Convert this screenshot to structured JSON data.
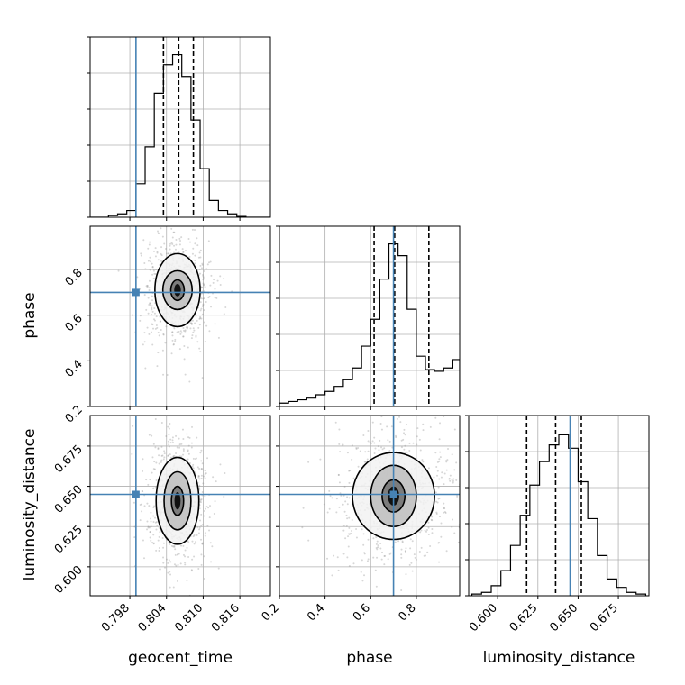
{
  "figure": {
    "type": "corner-plot",
    "truth_color": "#4682b4",
    "hist_color": "#000000",
    "scatter_color": "#8c8c8c"
  },
  "chart_data": {
    "type": "corner",
    "parameters": [
      "geocent_time",
      "phase",
      "luminosity_distance"
    ],
    "truths": {
      "geocent_time": 0.799,
      "phase": 0.7,
      "luminosity_distance": 0.645
    },
    "ranges": {
      "geocent_time": [
        0.7915,
        0.821
      ],
      "phase": [
        0.2,
        0.99
      ],
      "luminosity_distance": [
        0.582,
        0.694
      ]
    },
    "ticks": {
      "geocent_time": [
        0.798,
        0.804,
        0.81,
        0.816
      ],
      "phase": [
        0.2,
        0.4,
        0.6,
        0.8
      ],
      "luminosity_distance": [
        0.6,
        0.625,
        0.65,
        0.675
      ]
    },
    "tick_labels": {
      "geocent_time": [
        "0.798",
        "0.804",
        "0.810",
        "0.816"
      ],
      "phase": [
        "0.2",
        "0.4",
        "0.6",
        "0.8"
      ],
      "luminosity_distance": [
        "0.600",
        "0.625",
        "0.650",
        "0.675"
      ]
    },
    "quantiles": {
      "geocent_time": [
        0.8035,
        0.806,
        0.8084
      ],
      "phase": [
        0.615,
        0.705,
        0.855
      ],
      "luminosity_distance": [
        0.618,
        0.636,
        0.652
      ]
    },
    "histograms": {
      "geocent_time": {
        "edges": [
          0.7915,
          0.793,
          0.7945,
          0.796,
          0.7975,
          0.799,
          0.8005,
          0.802,
          0.8035,
          0.805,
          0.8065,
          0.808,
          0.8095,
          0.811,
          0.8125,
          0.814,
          0.8155,
          0.817,
          0.8185,
          0.82,
          0.821
        ],
        "counts": [
          0,
          0,
          0.01,
          0.02,
          0.04,
          0.2,
          0.42,
          0.74,
          0.91,
          0.97,
          0.84,
          0.58,
          0.29,
          0.1,
          0.04,
          0.02,
          0.005,
          0,
          0,
          0
        ]
      },
      "phase": {
        "edges": [
          0.2,
          0.24,
          0.28,
          0.32,
          0.36,
          0.4,
          0.44,
          0.48,
          0.52,
          0.56,
          0.6,
          0.64,
          0.68,
          0.72,
          0.76,
          0.8,
          0.84,
          0.88,
          0.92,
          0.96,
          0.99
        ],
        "counts": [
          0.02,
          0.03,
          0.04,
          0.05,
          0.07,
          0.09,
          0.12,
          0.16,
          0.23,
          0.36,
          0.52,
          0.76,
          0.97,
          0.9,
          0.58,
          0.3,
          0.22,
          0.21,
          0.23,
          0.28
        ]
      },
      "luminosity_distance": {
        "edges": [
          0.584,
          0.59,
          0.596,
          0.602,
          0.608,
          0.614,
          0.62,
          0.626,
          0.632,
          0.638,
          0.644,
          0.65,
          0.656,
          0.662,
          0.668,
          0.674,
          0.68,
          0.686,
          0.692
        ],
        "counts": [
          0.01,
          0.02,
          0.06,
          0.15,
          0.3,
          0.48,
          0.66,
          0.8,
          0.9,
          0.96,
          0.88,
          0.68,
          0.46,
          0.24,
          0.1,
          0.05,
          0.02,
          0.01
        ]
      }
    },
    "contours": {
      "phase_vs_geocent_time": {
        "center": [
          0.8058,
          0.71
        ],
        "levels": [
          {
            "label": "inner",
            "rx": 0.0011,
            "ry": 0.045
          },
          {
            "label": "mid",
            "rx": 0.0024,
            "ry": 0.085
          },
          {
            "label": "outer",
            "rx": 0.0037,
            "ry": 0.16
          }
        ]
      },
      "luminosity_distance_vs_geocent_time": {
        "center": [
          0.8058,
          0.641
        ],
        "levels": [
          {
            "label": "inner",
            "rx": 0.001,
            "ry": 0.009
          },
          {
            "label": "mid",
            "rx": 0.0022,
            "ry": 0.018
          },
          {
            "label": "outer",
            "rx": 0.0035,
            "ry": 0.027
          }
        ]
      },
      "luminosity_distance_vs_phase": {
        "center": [
          0.7,
          0.644
        ],
        "levels": [
          {
            "label": "inner",
            "rx": 0.05,
            "ry": 0.01
          },
          {
            "label": "mid",
            "rx": 0.1,
            "ry": 0.019
          },
          {
            "label": "outer",
            "rx": 0.18,
            "ry": 0.027
          }
        ]
      }
    },
    "xlabels": [
      "geocent_time",
      "phase",
      "luminosity_distance"
    ],
    "ylabels": [
      "",
      "phase",
      "luminosity_distance"
    ]
  }
}
